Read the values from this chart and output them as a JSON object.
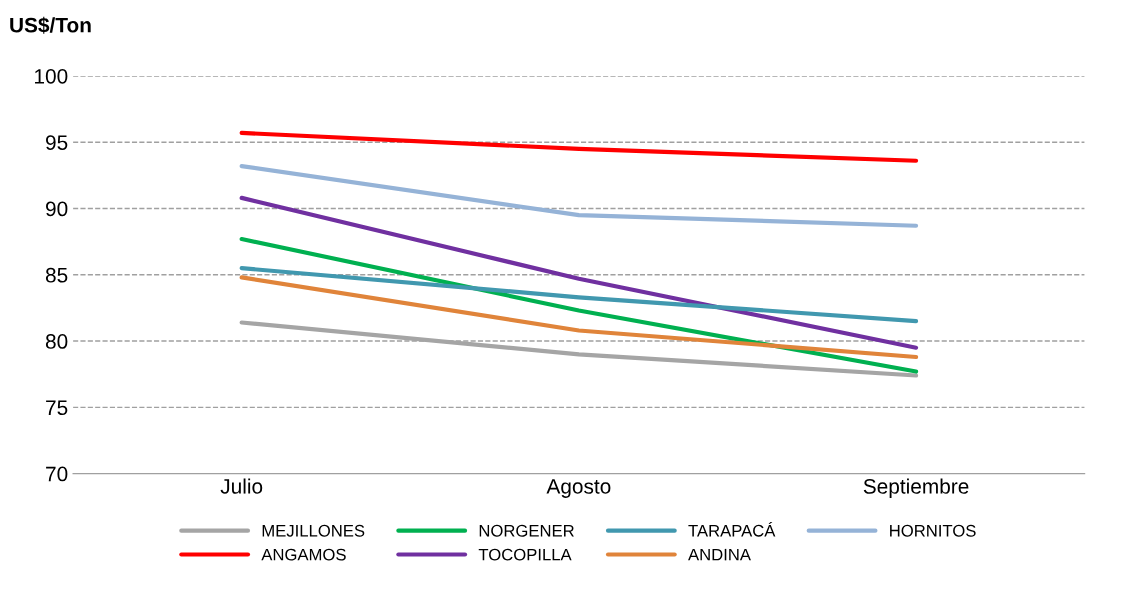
{
  "chart_data": {
    "type": "line",
    "ylabel": "US$/Ton",
    "categories": [
      "Julio",
      "Agosto",
      "Septiembre"
    ],
    "ylim": [
      70,
      100
    ],
    "yticks": [
      70,
      75,
      80,
      85,
      90,
      95,
      100
    ],
    "grid": "y",
    "legend": "bottom",
    "line_style": "solid",
    "marker": "none",
    "series": [
      {
        "name": "MEJILLONES",
        "color": "#a5a5a5",
        "values": [
          81.4,
          79.0,
          77.4
        ]
      },
      {
        "name": "ANGAMOS",
        "color": "#ff0000",
        "values": [
          95.7,
          94.5,
          93.6
        ]
      },
      {
        "name": "NORGENER",
        "color": "#00b050",
        "values": [
          87.7,
          82.3,
          77.7
        ]
      },
      {
        "name": "TOCOPILLA",
        "color": "#7030a0",
        "values": [
          90.8,
          84.7,
          79.5
        ]
      },
      {
        "name": "TARAPACÁ",
        "color": "#4198af",
        "values": [
          85.5,
          83.3,
          81.5
        ]
      },
      {
        "name": "ANDINA",
        "color": "#e0843a",
        "values": [
          84.8,
          80.8,
          78.8
        ]
      },
      {
        "name": "HORNITOS",
        "color": "#95b3d7",
        "values": [
          93.2,
          89.5,
          88.7
        ]
      }
    ]
  }
}
